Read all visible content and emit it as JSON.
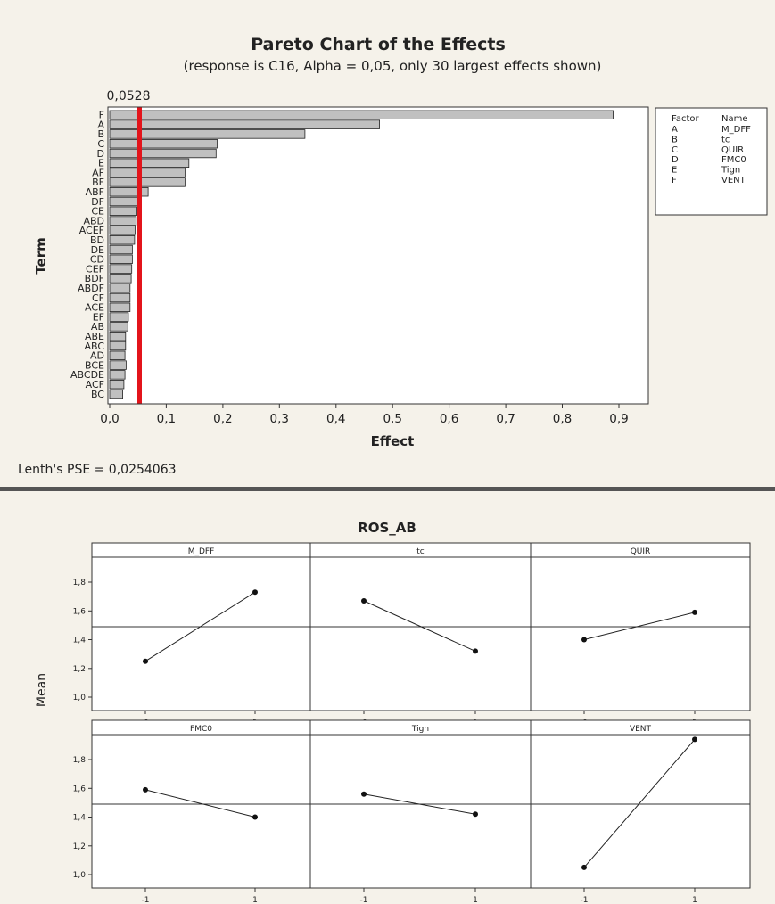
{
  "chart_data": [
    {
      "type": "bar",
      "orientation": "horizontal",
      "title": "Pareto Chart of the Effects",
      "subtitle": "(response is C16, Alpha = 0,05, only 30 largest effects shown)",
      "xlabel": "Effect",
      "ylabel": "Term",
      "xlim": [
        0,
        0.95
      ],
      "x_ticks": [
        "0,0",
        "0,1",
        "0,2",
        "0,3",
        "0,4",
        "0,5",
        "0,6",
        "0,7",
        "0,8",
        "0,9"
      ],
      "categories": [
        "F",
        "A",
        "B",
        "C",
        "D",
        "E",
        "AF",
        "BF",
        "ABF",
        "DF",
        "CE",
        "ABD",
        "ACEF",
        "BD",
        "DE",
        "CD",
        "CEF",
        "BDF",
        "ABDF",
        "CF",
        "ACE",
        "EF",
        "AB",
        "ABE",
        "ABC",
        "AD",
        "BCE",
        "ABCDE",
        "ACF",
        "BC"
      ],
      "values": [
        0.89,
        0.477,
        0.345,
        0.19,
        0.188,
        0.14,
        0.133,
        0.133,
        0.068,
        0.052,
        0.048,
        0.047,
        0.045,
        0.044,
        0.04,
        0.04,
        0.039,
        0.038,
        0.036,
        0.036,
        0.036,
        0.033,
        0.032,
        0.028,
        0.028,
        0.027,
        0.029,
        0.027,
        0.025,
        0.023
      ],
      "reference_line": {
        "value": 0.0528,
        "label": "0,0528",
        "color": "#e3141b"
      },
      "bar_color": "#c0c0c0",
      "legend": {
        "header": [
          "Factor",
          "Name"
        ],
        "rows": [
          [
            "A",
            "M_DFF"
          ],
          [
            "B",
            "tc"
          ],
          [
            "C",
            "QUIR"
          ],
          [
            "D",
            "FMC0"
          ],
          [
            "E",
            "Tign"
          ],
          [
            "F",
            "VENT"
          ]
        ],
        "placement": "right"
      },
      "footnote": "Lenth's PSE = 0,0254063"
    },
    {
      "type": "line",
      "title": "ROS_AB",
      "ylabel": "Mean",
      "ylim": [
        1.0,
        2.0
      ],
      "y_ticks": [
        "1,0",
        "1,2",
        "1,4",
        "1,6",
        "1,8"
      ],
      "x_ticks": [
        "-1",
        "1"
      ],
      "reference_mean": 1.49,
      "panels": [
        {
          "name": "M_DFF",
          "x": [
            -1,
            1
          ],
          "values": [
            1.25,
            1.73
          ]
        },
        {
          "name": "tc",
          "x": [
            -1,
            1
          ],
          "values": [
            1.67,
            1.32
          ]
        },
        {
          "name": "QUIR",
          "x": [
            -1,
            1
          ],
          "values": [
            1.4,
            1.59
          ]
        },
        {
          "name": "FMC0",
          "x": [
            -1,
            1
          ],
          "values": [
            1.59,
            1.4
          ]
        },
        {
          "name": "Tign",
          "x": [
            -1,
            1
          ],
          "values": [
            1.56,
            1.42
          ]
        },
        {
          "name": "VENT",
          "x": [
            -1,
            1
          ],
          "values": [
            1.05,
            1.94
          ]
        }
      ]
    }
  ],
  "colors": {
    "background": "#f5f2ea",
    "bar_fill": "#c0c0c0",
    "reference_line": "#e3141b",
    "separator": "#555555"
  }
}
